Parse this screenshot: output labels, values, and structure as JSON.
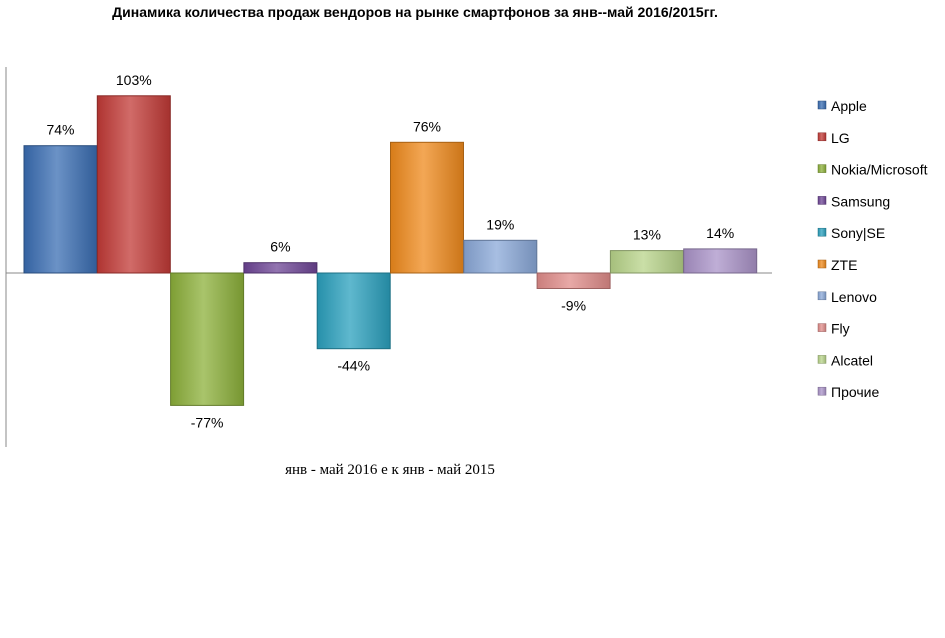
{
  "chart_data": {
    "type": "bar",
    "title": "Динамика количества продаж вендоров на рынке смартфонов за янв--май  2016/2015гг.",
    "xlabel": "янв - май 2016 е к янв - май 2015",
    "ylabel": "",
    "categories": [
      "янв - май 2016 е к янв - май 2015"
    ],
    "ylim": [
      -1.0,
      1.35
    ],
    "grid": false,
    "legend_position": "right",
    "value_format": "percent",
    "series": [
      {
        "name": "Apple",
        "values": [
          0.74
        ],
        "label": "74%",
        "color": "#3a6db3"
      },
      {
        "name": "LG",
        "values": [
          1.03
        ],
        "label": "103%",
        "color": "#c23a36"
      },
      {
        "name": "Nokia/Microsoft",
        "values": [
          -0.77
        ],
        "label": "-77%",
        "color": "#8cb03a"
      },
      {
        "name": "Samsung",
        "values": [
          0.06
        ],
        "label": "6%",
        "color": "#6e4596"
      },
      {
        "name": "Sony|SE",
        "values": [
          -0.44
        ],
        "label": "-44%",
        "color": "#2aa0bd"
      },
      {
        "name": "ZTE",
        "values": [
          0.76
        ],
        "label": "76%",
        "color": "#ef8a1c"
      },
      {
        "name": "Lenovo",
        "values": [
          0.19
        ],
        "label": "19%",
        "color": "#8aa8d8"
      },
      {
        "name": "Fly",
        "values": [
          -0.09
        ],
        "label": "-9%",
        "color": "#e08c8a"
      },
      {
        "name": "Alcatel",
        "values": [
          0.13
        ],
        "label": "13%",
        "color": "#b8d48a"
      },
      {
        "name": "Прочие",
        "values": [
          0.14
        ],
        "label": "14%",
        "color": "#aa93c8"
      }
    ]
  }
}
